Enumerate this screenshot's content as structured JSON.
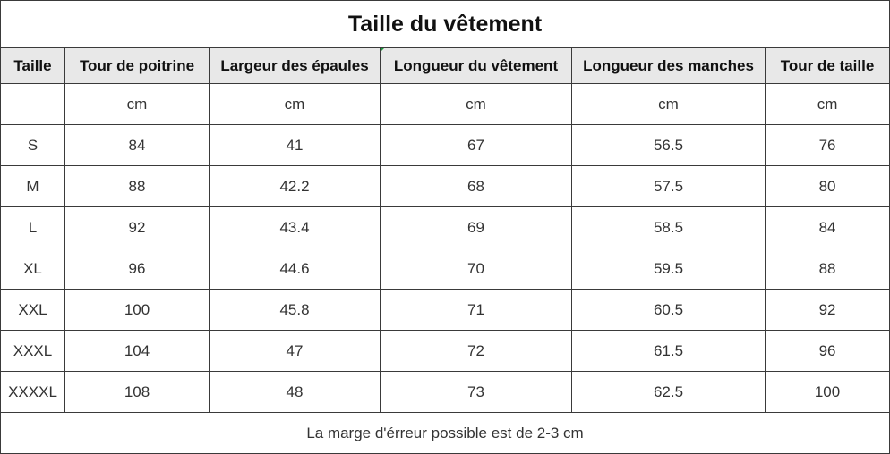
{
  "title": "Taille du vêtement",
  "headers": [
    "Taille",
    "Tour de poitrine",
    "Largeur des épaules",
    "Longueur du vêtement",
    "Longueur des manches",
    "Tour de taille"
  ],
  "units": [
    "",
    "cm",
    "cm",
    "cm",
    "cm",
    "cm"
  ],
  "rows": [
    [
      "S",
      "84",
      "41",
      "67",
      "56.5",
      "76"
    ],
    [
      "M",
      "88",
      "42.2",
      "68",
      "57.5",
      "80"
    ],
    [
      "L",
      "92",
      "43.4",
      "69",
      "58.5",
      "84"
    ],
    [
      "XL",
      "96",
      "44.6",
      "70",
      "59.5",
      "88"
    ],
    [
      "XXL",
      "100",
      "45.8",
      "71",
      "60.5",
      "92"
    ],
    [
      "XXXL",
      "104",
      "47",
      "72",
      "61.5",
      "96"
    ],
    [
      "XXXXL",
      "108",
      "48",
      "73",
      "62.5",
      "100"
    ]
  ],
  "note": "La marge d'érreur possible est de 2-3 cm"
}
